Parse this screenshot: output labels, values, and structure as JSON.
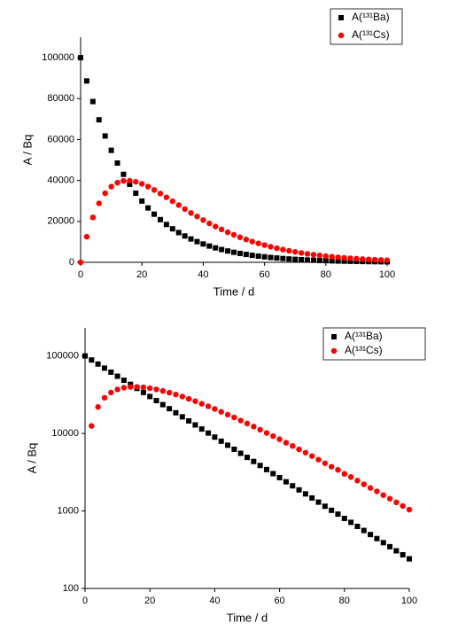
{
  "chart_data": [
    {
      "type": "scatter",
      "x_label": "Time / d",
      "y_label": "A / Bq",
      "log_y": false,
      "legend": "upper right",
      "xlim": [
        0,
        100
      ],
      "xticks": [
        0,
        20,
        40,
        60,
        80,
        100
      ],
      "ylim": [
        0,
        110000
      ],
      "yticks": [
        0,
        20000,
        40000,
        60000,
        80000,
        100000
      ],
      "x": [
        0,
        2,
        4,
        6,
        8,
        10,
        12,
        14,
        16,
        18,
        20,
        22,
        24,
        26,
        28,
        30,
        32,
        34,
        36,
        38,
        40,
        42,
        44,
        46,
        48,
        50,
        52,
        54,
        56,
        58,
        60,
        62,
        64,
        66,
        68,
        70,
        72,
        74,
        76,
        78,
        80,
        82,
        84,
        86,
        88,
        90,
        92,
        94,
        96,
        98,
        100
      ],
      "series": [
        {
          "name": "A(¹³¹Ba)",
          "color": "#000000",
          "marker": "square",
          "values": [
            100000,
            88640,
            78570,
            69650,
            61740,
            54730,
            48510,
            43000,
            38120,
            33790,
            29950,
            26550,
            23530,
            20860,
            18490,
            16390,
            14530,
            12880,
            11410,
            10120,
            8970,
            7950,
            7050,
            6250,
            5540,
            4910,
            4350,
            3860,
            3420,
            3030,
            2690,
            2380,
            2110,
            1870,
            1660,
            1470,
            1300,
            1150,
            1020,
            910,
            800,
            713,
            632,
            560,
            496,
            440,
            390,
            346,
            306,
            272,
            241
          ]
        },
        {
          "name": "A(¹³¹Cs)",
          "color": "#ff0000",
          "marker": "circle",
          "values": [
            0,
            12500,
            21950,
            28840,
            33750,
            37000,
            38920,
            39810,
            39880,
            39360,
            38340,
            37000,
            35350,
            33620,
            31770,
            29860,
            27940,
            26030,
            24120,
            22390,
            20670,
            19010,
            17480,
            16080,
            14670,
            13460,
            12250,
            11170,
            10140,
            9250,
            8420,
            7590,
            6890,
            6230,
            5650,
            5100,
            4590,
            4120,
            3720,
            3390,
            3010,
            2740,
            2460,
            2210,
            1980,
            1790,
            1600,
            1440,
            1290,
            1160,
            1040
          ]
        }
      ]
    },
    {
      "type": "scatter",
      "x_label": "Time / d",
      "y_label": "A / Bq",
      "log_y": true,
      "legend": "upper right",
      "xlim": [
        0,
        100
      ],
      "xticks": [
        0,
        20,
        40,
        60,
        80,
        100
      ],
      "ylim": [
        100,
        230000
      ],
      "yticks": [
        100,
        1000,
        10000,
        100000
      ],
      "x": [
        0,
        2,
        4,
        6,
        8,
        10,
        12,
        14,
        16,
        18,
        20,
        22,
        24,
        26,
        28,
        30,
        32,
        34,
        36,
        38,
        40,
        42,
        44,
        46,
        48,
        50,
        52,
        54,
        56,
        58,
        60,
        62,
        64,
        66,
        68,
        70,
        72,
        74,
        76,
        78,
        80,
        82,
        84,
        86,
        88,
        90,
        92,
        94,
        96,
        98,
        100
      ],
      "series": [
        {
          "name": "A(¹³¹Ba)",
          "color": "#000000",
          "marker": "square",
          "values": [
            100000,
            88640,
            78570,
            69650,
            61740,
            54730,
            48510,
            43000,
            38120,
            33790,
            29950,
            26550,
            23530,
            20860,
            18490,
            16390,
            14530,
            12880,
            11410,
            10120,
            8970,
            7950,
            7050,
            6250,
            5540,
            4910,
            4350,
            3860,
            3420,
            3030,
            2690,
            2380,
            2110,
            1870,
            1660,
            1470,
            1300,
            1150,
            1020,
            910,
            800,
            713,
            632,
            560,
            496,
            440,
            390,
            346,
            306,
            272,
            241
          ]
        },
        {
          "name": "A(¹³¹Cs)",
          "color": "#ff0000",
          "marker": "circle",
          "values": [
            null,
            12500,
            21950,
            28840,
            33750,
            37000,
            38920,
            39810,
            39880,
            39360,
            38340,
            37000,
            35350,
            33620,
            31770,
            29860,
            27940,
            26030,
            24120,
            22390,
            20670,
            19010,
            17480,
            16080,
            14670,
            13460,
            12250,
            11170,
            10140,
            9250,
            8420,
            7590,
            6890,
            6230,
            5650,
            5100,
            4590,
            4120,
            3720,
            3390,
            3010,
            2740,
            2460,
            2210,
            1980,
            1790,
            1600,
            1440,
            1290,
            1160,
            1040
          ]
        }
      ]
    }
  ]
}
